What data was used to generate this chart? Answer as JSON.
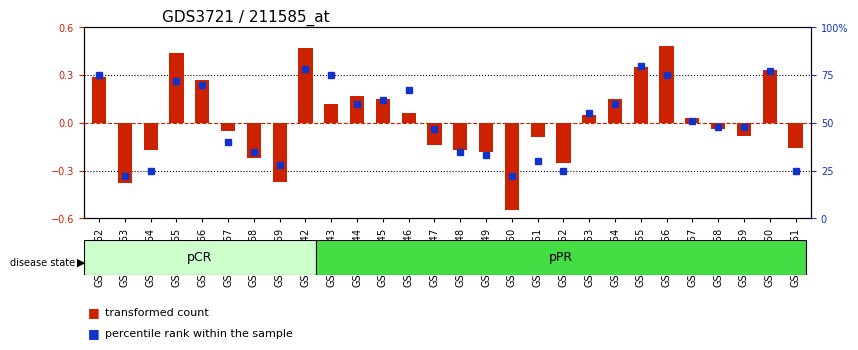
{
  "title": "GDS3721 / 211585_at",
  "samples": [
    "GSM559062",
    "GSM559063",
    "GSM559064",
    "GSM559065",
    "GSM559066",
    "GSM559067",
    "GSM559068",
    "GSM559069",
    "GSM559042",
    "GSM559043",
    "GSM559044",
    "GSM559045",
    "GSM559046",
    "GSM559047",
    "GSM559048",
    "GSM559049",
    "GSM559050",
    "GSM559051",
    "GSM559052",
    "GSM559053",
    "GSM559054",
    "GSM559055",
    "GSM559056",
    "GSM559057",
    "GSM559058",
    "GSM559059",
    "GSM559060",
    "GSM559061"
  ],
  "red_values": [
    0.29,
    -0.38,
    -0.17,
    0.44,
    0.27,
    -0.05,
    -0.22,
    -0.37,
    0.47,
    0.12,
    0.17,
    0.15,
    0.06,
    -0.14,
    -0.17,
    -0.18,
    -0.55,
    -0.09,
    -0.25,
    0.05,
    0.15,
    0.35,
    0.48,
    0.03,
    -0.04,
    -0.08,
    0.33,
    -0.16
  ],
  "blue_values": [
    75,
    22,
    25,
    72,
    70,
    40,
    35,
    28,
    78,
    75,
    60,
    62,
    67,
    47,
    35,
    33,
    22,
    30,
    25,
    55,
    60,
    80,
    75,
    51,
    48,
    48,
    77,
    25
  ],
  "pCR_count": 9,
  "pPR_count": 19,
  "ylim": [
    -0.6,
    0.6
  ],
  "yticks_left": [
    -0.6,
    -0.3,
    0.0,
    0.3,
    0.6
  ],
  "yticks_right": [
    0,
    25,
    50,
    75,
    100
  ],
  "hlines": [
    0.3,
    0.0,
    -0.3
  ],
  "bar_color": "#cc2200",
  "dot_color": "#1133cc",
  "pCR_color": "#ccffcc",
  "pPR_color": "#44dd44",
  "pCR_label": "pCR",
  "pPR_label": "pPR",
  "legend_red": "transformed count",
  "legend_blue": "percentile rank within the sample",
  "axis_label_color_left": "#cc2200",
  "axis_label_color_right": "#1133cc",
  "grid_color": "#000000",
  "zero_line_color": "#cc2200",
  "title_fontsize": 11,
  "tick_fontsize": 7,
  "bar_width": 0.55
}
